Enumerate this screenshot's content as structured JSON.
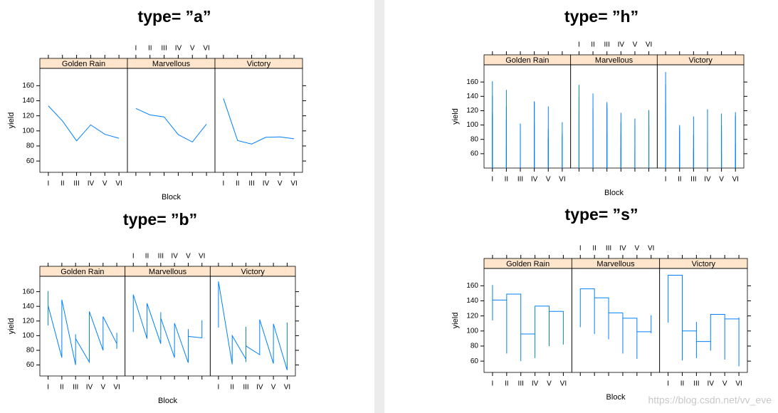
{
  "chart_data": [
    {
      "type": "line",
      "title": "type= ”a”",
      "xlabel": "Block",
      "ylabel": "yield",
      "categories": [
        "I",
        "II",
        "III",
        "IV",
        "V",
        "VI"
      ],
      "ylim": [
        45,
        183
      ],
      "yticks": [
        60,
        80,
        100,
        120,
        140,
        160
      ],
      "series": [
        {
          "name": "Golden Rain",
          "color": "#0080ff",
          "values": [
            133.25,
            113.25,
            86.75,
            108,
            95.5,
            90.25
          ]
        },
        {
          "name": "Marvellous",
          "color": "#0080ff",
          "values": [
            129.75,
            121.25,
            118.5,
            95,
            85.25,
            109
          ]
        },
        {
          "name": "Victory",
          "color": "#0080ff",
          "values": [
            143,
            87.25,
            82.5,
            91.5,
            92,
            89.5
          ]
        }
      ]
    },
    {
      "type": "spike",
      "title": "type= ”h”",
      "xlabel": "Block",
      "ylabel": "yield",
      "categories": [
        "I",
        "II",
        "III",
        "IV",
        "V",
        "VI"
      ],
      "ylim": [
        40,
        184
      ],
      "yticks": [
        60,
        80,
        100,
        120,
        140,
        160
      ],
      "series": [
        {
          "name": "Golden Rain",
          "color": "#0080ff",
          "values": [
            [
              117,
              114,
              161,
              141
            ],
            [
              70,
              108,
              126,
              149
            ],
            [
              60,
              102,
              89,
              96
            ],
            [
              64,
              103,
              132,
              133
            ],
            [
              80,
              82,
              94,
              126
            ],
            [
              89,
              82,
              86,
              104
            ]
          ]
        },
        {
          "name": "Marvellous",
          "color": "#0080ff",
          "values": [
            [
              105,
              140,
              118,
              156
            ],
            [
              96,
              124,
              121,
              144
            ],
            [
              89,
              129,
              132,
              124
            ],
            [
              70,
              89,
              104,
              117
            ],
            [
              63,
              70,
              109,
              99
            ],
            [
              97,
              99,
              119,
              121
            ]
          ]
        },
        {
          "name": "Victory",
          "color": "#0080ff",
          "values": [
            [
              111,
              130,
              157,
              174
            ],
            [
              61,
              91,
              97,
              100
            ],
            [
              68,
              64,
              112,
              86
            ],
            [
              74,
              89,
              81,
              122
            ],
            [
              62,
              90,
              100,
              116
            ],
            [
              53,
              74,
              118,
              113
            ]
          ]
        }
      ]
    },
    {
      "type": "line",
      "title": "type= ”b”",
      "xlabel": "Block",
      "ylabel": "yield",
      "categories": [
        "I",
        "II",
        "III",
        "IV",
        "V",
        "VI"
      ],
      "ylim": [
        45,
        181
      ],
      "yticks": [
        60,
        80,
        100,
        120,
        140,
        160
      ],
      "series": [
        {
          "name": "Golden Rain",
          "color": "#0080ff",
          "values": [
            [
              117,
              114,
              161,
              141
            ],
            [
              70,
              108,
              126,
              149
            ],
            [
              60,
              102,
              89,
              96
            ],
            [
              64,
              103,
              132,
              133
            ],
            [
              80,
              82,
              94,
              126
            ],
            [
              89,
              82,
              86,
              104
            ]
          ]
        },
        {
          "name": "Marvellous",
          "color": "#0080ff",
          "values": [
            [
              105,
              140,
              118,
              156
            ],
            [
              96,
              124,
              121,
              144
            ],
            [
              89,
              129,
              132,
              124
            ],
            [
              70,
              89,
              104,
              117
            ],
            [
              63,
              70,
              109,
              99
            ],
            [
              97,
              99,
              119,
              121
            ]
          ]
        },
        {
          "name": "Victory",
          "color": "#0080ff",
          "values": [
            [
              111,
              130,
              157,
              174
            ],
            [
              61,
              91,
              97,
              100
            ],
            [
              68,
              64,
              112,
              86
            ],
            [
              74,
              89,
              81,
              122
            ],
            [
              62,
              90,
              100,
              116
            ],
            [
              53,
              74,
              118,
              113
            ]
          ]
        }
      ]
    },
    {
      "type": "step",
      "title": "type= ”s”",
      "xlabel": "Block",
      "ylabel": "yield",
      "categories": [
        "I",
        "II",
        "III",
        "IV",
        "V",
        "VI"
      ],
      "ylim": [
        45,
        183
      ],
      "yticks": [
        60,
        80,
        100,
        120,
        140,
        160
      ],
      "series": [
        {
          "name": "Golden Rain",
          "color": "#0080ff",
          "values": [
            [
              117,
              114,
              161,
              141
            ],
            [
              70,
              108,
              126,
              149
            ],
            [
              60,
              102,
              89,
              96
            ],
            [
              64,
              103,
              132,
              133
            ],
            [
              80,
              82,
              94,
              126
            ],
            [
              89,
              82,
              86,
              104
            ]
          ]
        },
        {
          "name": "Marvellous",
          "color": "#0080ff",
          "values": [
            [
              105,
              140,
              118,
              156
            ],
            [
              96,
              124,
              121,
              144
            ],
            [
              89,
              129,
              132,
              124
            ],
            [
              70,
              89,
              104,
              117
            ],
            [
              63,
              70,
              109,
              99
            ],
            [
              97,
              99,
              119,
              121
            ]
          ]
        },
        {
          "name": "Victory",
          "color": "#0080ff",
          "values": [
            [
              111,
              130,
              157,
              174
            ],
            [
              61,
              91,
              97,
              100
            ],
            [
              68,
              64,
              112,
              86
            ],
            [
              74,
              89,
              81,
              122
            ],
            [
              62,
              90,
              100,
              116
            ],
            [
              53,
              74,
              118,
              113
            ]
          ]
        }
      ]
    }
  ],
  "watermark": "https://blog.csdn.net/vv_eve"
}
